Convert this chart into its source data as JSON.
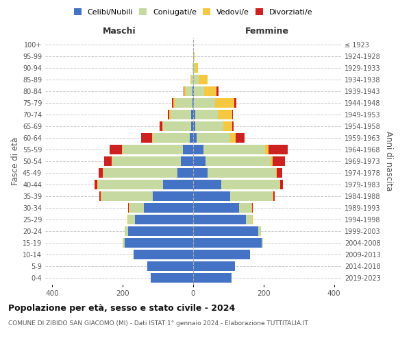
{
  "age_groups": [
    "0-4",
    "5-9",
    "10-14",
    "15-19",
    "20-24",
    "25-29",
    "30-34",
    "35-39",
    "40-44",
    "45-49",
    "50-54",
    "55-59",
    "60-64",
    "65-69",
    "70-74",
    "75-79",
    "80-84",
    "85-89",
    "90-94",
    "95-99",
    "100+"
  ],
  "birth_years": [
    "2019-2023",
    "2014-2018",
    "2009-2013",
    "2004-2008",
    "1999-2003",
    "1994-1998",
    "1989-1993",
    "1984-1988",
    "1979-1983",
    "1974-1978",
    "1969-1973",
    "1964-1968",
    "1959-1963",
    "1954-1958",
    "1949-1953",
    "1944-1948",
    "1939-1943",
    "1934-1938",
    "1929-1933",
    "1924-1928",
    "≤ 1923"
  ],
  "colors": {
    "celibi": "#4472c4",
    "coniugati": "#c5d9a0",
    "vedovi": "#f5c842",
    "divorziati": "#cc2222"
  },
  "maschi": {
    "celibi": [
      120,
      130,
      170,
      195,
      185,
      165,
      140,
      115,
      85,
      45,
      35,
      30,
      10,
      5,
      5,
      2,
      2,
      0,
      0,
      0,
      0
    ],
    "coniugati": [
      0,
      0,
      0,
      5,
      10,
      20,
      40,
      145,
      185,
      210,
      195,
      170,
      105,
      80,
      60,
      50,
      20,
      5,
      2,
      0,
      0
    ],
    "vedovi": [
      0,
      0,
      0,
      0,
      0,
      2,
      2,
      2,
      2,
      2,
      2,
      2,
      2,
      2,
      3,
      5,
      3,
      2,
      0,
      0,
      0
    ],
    "divorziati": [
      0,
      0,
      0,
      0,
      0,
      0,
      2,
      5,
      8,
      12,
      20,
      35,
      30,
      8,
      3,
      3,
      3,
      0,
      0,
      0,
      0
    ]
  },
  "femmine": {
    "celibi": [
      108,
      118,
      162,
      195,
      185,
      150,
      130,
      105,
      80,
      40,
      35,
      30,
      10,
      5,
      5,
      2,
      2,
      0,
      0,
      0,
      0
    ],
    "coniugati": [
      0,
      0,
      0,
      4,
      8,
      18,
      35,
      120,
      165,
      195,
      185,
      175,
      95,
      80,
      65,
      60,
      30,
      15,
      5,
      2,
      0
    ],
    "vedovi": [
      0,
      0,
      0,
      0,
      0,
      2,
      2,
      2,
      2,
      2,
      5,
      8,
      15,
      25,
      40,
      55,
      35,
      25,
      8,
      2,
      0
    ],
    "divorziati": [
      0,
      0,
      0,
      0,
      0,
      0,
      2,
      5,
      8,
      15,
      35,
      55,
      25,
      5,
      3,
      5,
      5,
      0,
      0,
      0,
      0
    ]
  },
  "title": "Popolazione per età, sesso e stato civile - 2024",
  "subtitle": "COMUNE DI ZIBIDO SAN GIACOMO (MI) - Dati ISTAT 1° gennaio 2024 - Elaborazione TUTTITALIA.IT",
  "xlabel_left": "Maschi",
  "xlabel_right": "Femmine",
  "ylabel_left": "Fasce di età",
  "ylabel_right": "Anni di nascita",
  "xlim": 420,
  "background_color": "#ffffff",
  "grid_color": "#cccccc"
}
